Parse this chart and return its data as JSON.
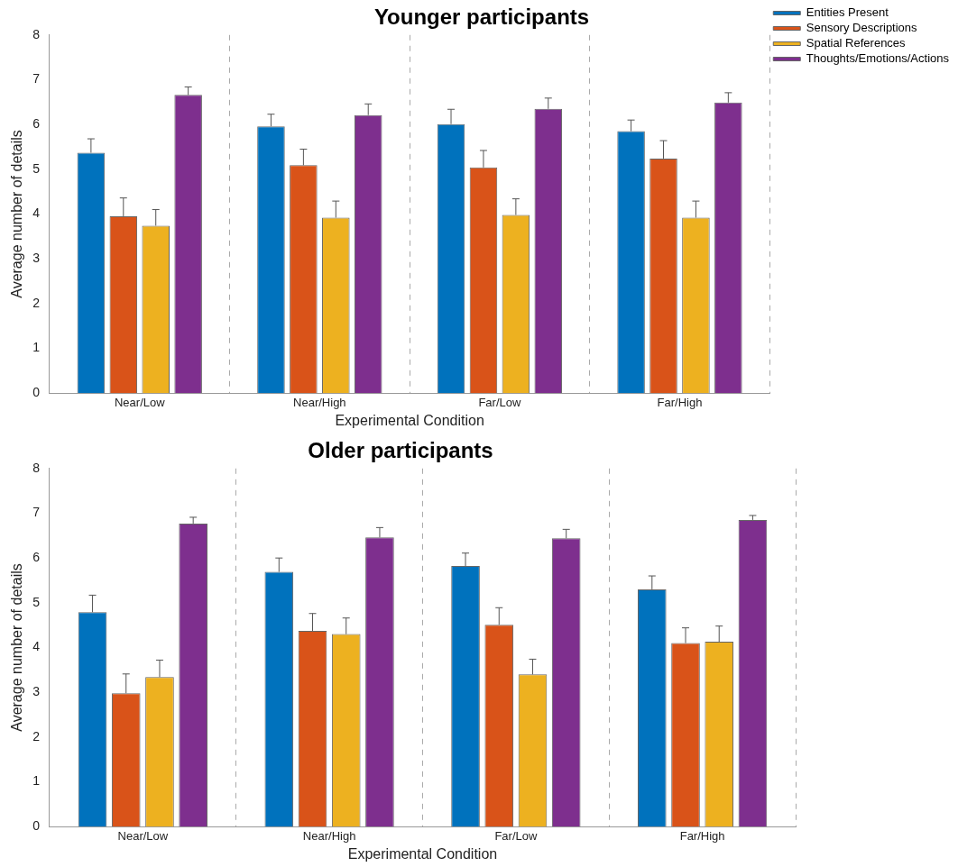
{
  "chart_data": [
    {
      "type": "bar",
      "title": "Younger participants",
      "xlabel": "Experimental Condition",
      "ylabel": "Average number of details",
      "categories": [
        "Near/Low",
        "Near/High",
        "Far/Low",
        "Far/High"
      ],
      "ylim": [
        0,
        8
      ],
      "yticks": [
        0,
        1,
        2,
        3,
        4,
        5,
        6,
        7,
        8
      ],
      "grid": "x",
      "legend": "top right",
      "series": [
        {
          "name": "Entities Present",
          "color": "#0072bd",
          "values": [
            5.37,
            5.96,
            6.01,
            5.85
          ],
          "errors": [
            [
              5.37,
              5.68
            ],
            [
              5.96,
              6.23
            ],
            [
              6.01,
              6.34
            ],
            [
              5.85,
              6.1
            ]
          ]
        },
        {
          "name": "Sensory Descriptions",
          "color": "#d95319",
          "values": [
            3.95,
            5.09,
            5.04,
            5.24
          ],
          "errors": [
            [
              3.95,
              4.36
            ],
            [
              5.09,
              5.45
            ],
            [
              5.04,
              5.42
            ],
            [
              5.24,
              5.64
            ]
          ]
        },
        {
          "name": "Spatial References",
          "color": "#edb120",
          "values": [
            3.74,
            3.92,
            3.98,
            3.92
          ],
          "errors": [
            [
              3.74,
              4.1
            ],
            [
              3.92,
              4.29
            ],
            [
              3.98,
              4.34
            ],
            [
              3.92,
              4.29
            ]
          ]
        },
        {
          "name": "Thoughts/Emotions/Actions",
          "color": "#7e2f8e",
          "values": [
            6.66,
            6.21,
            6.35,
            6.49
          ],
          "errors": [
            [
              6.66,
              6.84
            ],
            [
              6.21,
              6.46
            ],
            [
              6.35,
              6.59
            ],
            [
              6.49,
              6.71
            ]
          ]
        }
      ]
    },
    {
      "type": "bar",
      "title": "Older participants",
      "xlabel": "Experimental Condition",
      "ylabel": "Average number of details",
      "categories": [
        "Near/Low",
        "Near/High",
        "Far/Low",
        "Far/High"
      ],
      "ylim": [
        0,
        8
      ],
      "yticks": [
        0,
        1,
        2,
        3,
        4,
        5,
        6,
        7,
        8
      ],
      "grid": "x",
      "series": [
        {
          "color": "#0072bd",
          "values": [
            4.79,
            5.69,
            5.82,
            5.3
          ],
          "errors": [
            [
              4.79,
              5.17
            ],
            [
              5.69,
              6.0
            ],
            [
              5.82,
              6.11
            ],
            [
              5.3,
              5.6
            ]
          ]
        },
        {
          "color": "#d95319",
          "values": [
            2.98,
            4.37,
            4.51,
            4.1
          ],
          "errors": [
            [
              2.98,
              3.41
            ],
            [
              4.37,
              4.76
            ],
            [
              4.51,
              4.89
            ],
            [
              4.1,
              4.44
            ]
          ]
        },
        {
          "color": "#edb120",
          "values": [
            3.34,
            4.3,
            3.4,
            4.13
          ],
          "errors": [
            [
              3.34,
              3.72
            ],
            [
              4.3,
              4.66
            ],
            [
              3.4,
              3.74
            ],
            [
              4.13,
              4.48
            ]
          ]
        },
        {
          "color": "#7e2f8e",
          "values": [
            6.77,
            6.46,
            6.44,
            6.85
          ],
          "errors": [
            [
              6.77,
              6.91
            ],
            [
              6.46,
              6.68
            ],
            [
              6.44,
              6.64
            ],
            [
              6.85,
              6.95
            ]
          ]
        }
      ]
    }
  ]
}
